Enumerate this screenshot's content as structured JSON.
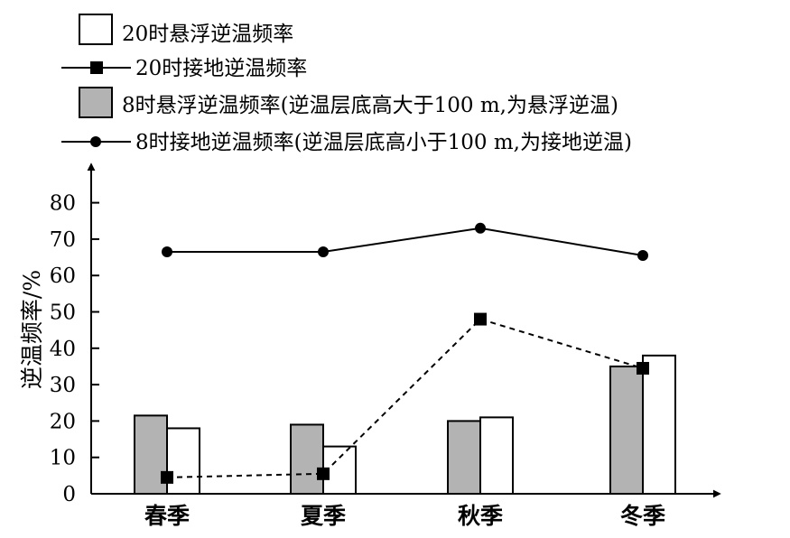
{
  "chart_data": {
    "type": "bar",
    "categories": [
      "春季",
      "夏季",
      "秋季",
      "冬季"
    ],
    "ylabel": "逆温频率/%",
    "xlabel": "",
    "ylim": [
      0,
      80
    ],
    "yticks": [
      0,
      10,
      20,
      30,
      40,
      50,
      60,
      70,
      80
    ],
    "legend_position": "top-left",
    "series": [
      {
        "name": "20时悬浮逆温频率",
        "kind": "bar",
        "fill": "#ffffff",
        "values": [
          18,
          13,
          21,
          38
        ]
      },
      {
        "name": "20时接地逆温频率",
        "kind": "line",
        "style": "dashed",
        "marker": "square",
        "values": [
          4.5,
          5.5,
          48,
          34.5
        ]
      },
      {
        "name": "8时悬浮逆温频率(逆温层底高大于100 m,为悬浮逆温)",
        "kind": "bar",
        "fill": "#b3b3b3",
        "values": [
          21.5,
          19,
          20,
          35
        ]
      },
      {
        "name": "8时接地逆温频率(逆温层底高小于100 m,为接地逆温)",
        "kind": "line",
        "style": "solid",
        "marker": "circle",
        "values": [
          66.5,
          66.5,
          73,
          65.5
        ]
      }
    ]
  }
}
